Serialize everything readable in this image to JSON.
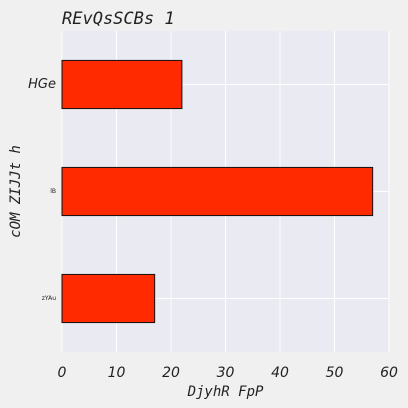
{
  "chart_data": {
    "type": "barh",
    "title": "REvQsSCBs  1",
    "xlabel": "DjyhR FpP",
    "ylabel": "cOM ZIJJt h",
    "categories": [
      "HGe",
      "lB",
      "zYAu"
    ],
    "values": [
      22,
      57,
      17
    ],
    "xlim": [
      0,
      60
    ],
    "xticks": [
      0,
      10,
      20,
      30,
      40,
      50,
      60
    ],
    "xtick_labels": [
      "0",
      "10",
      "20",
      "30",
      "40",
      "50",
      "60"
    ],
    "grid": true,
    "colors": {
      "bar_fill": "#ff2a00",
      "bar_edge": "#111111",
      "plot_bg": "#eaeaf2",
      "grid": "#ffffff",
      "figure_bg": "#f0f0f0"
    }
  }
}
